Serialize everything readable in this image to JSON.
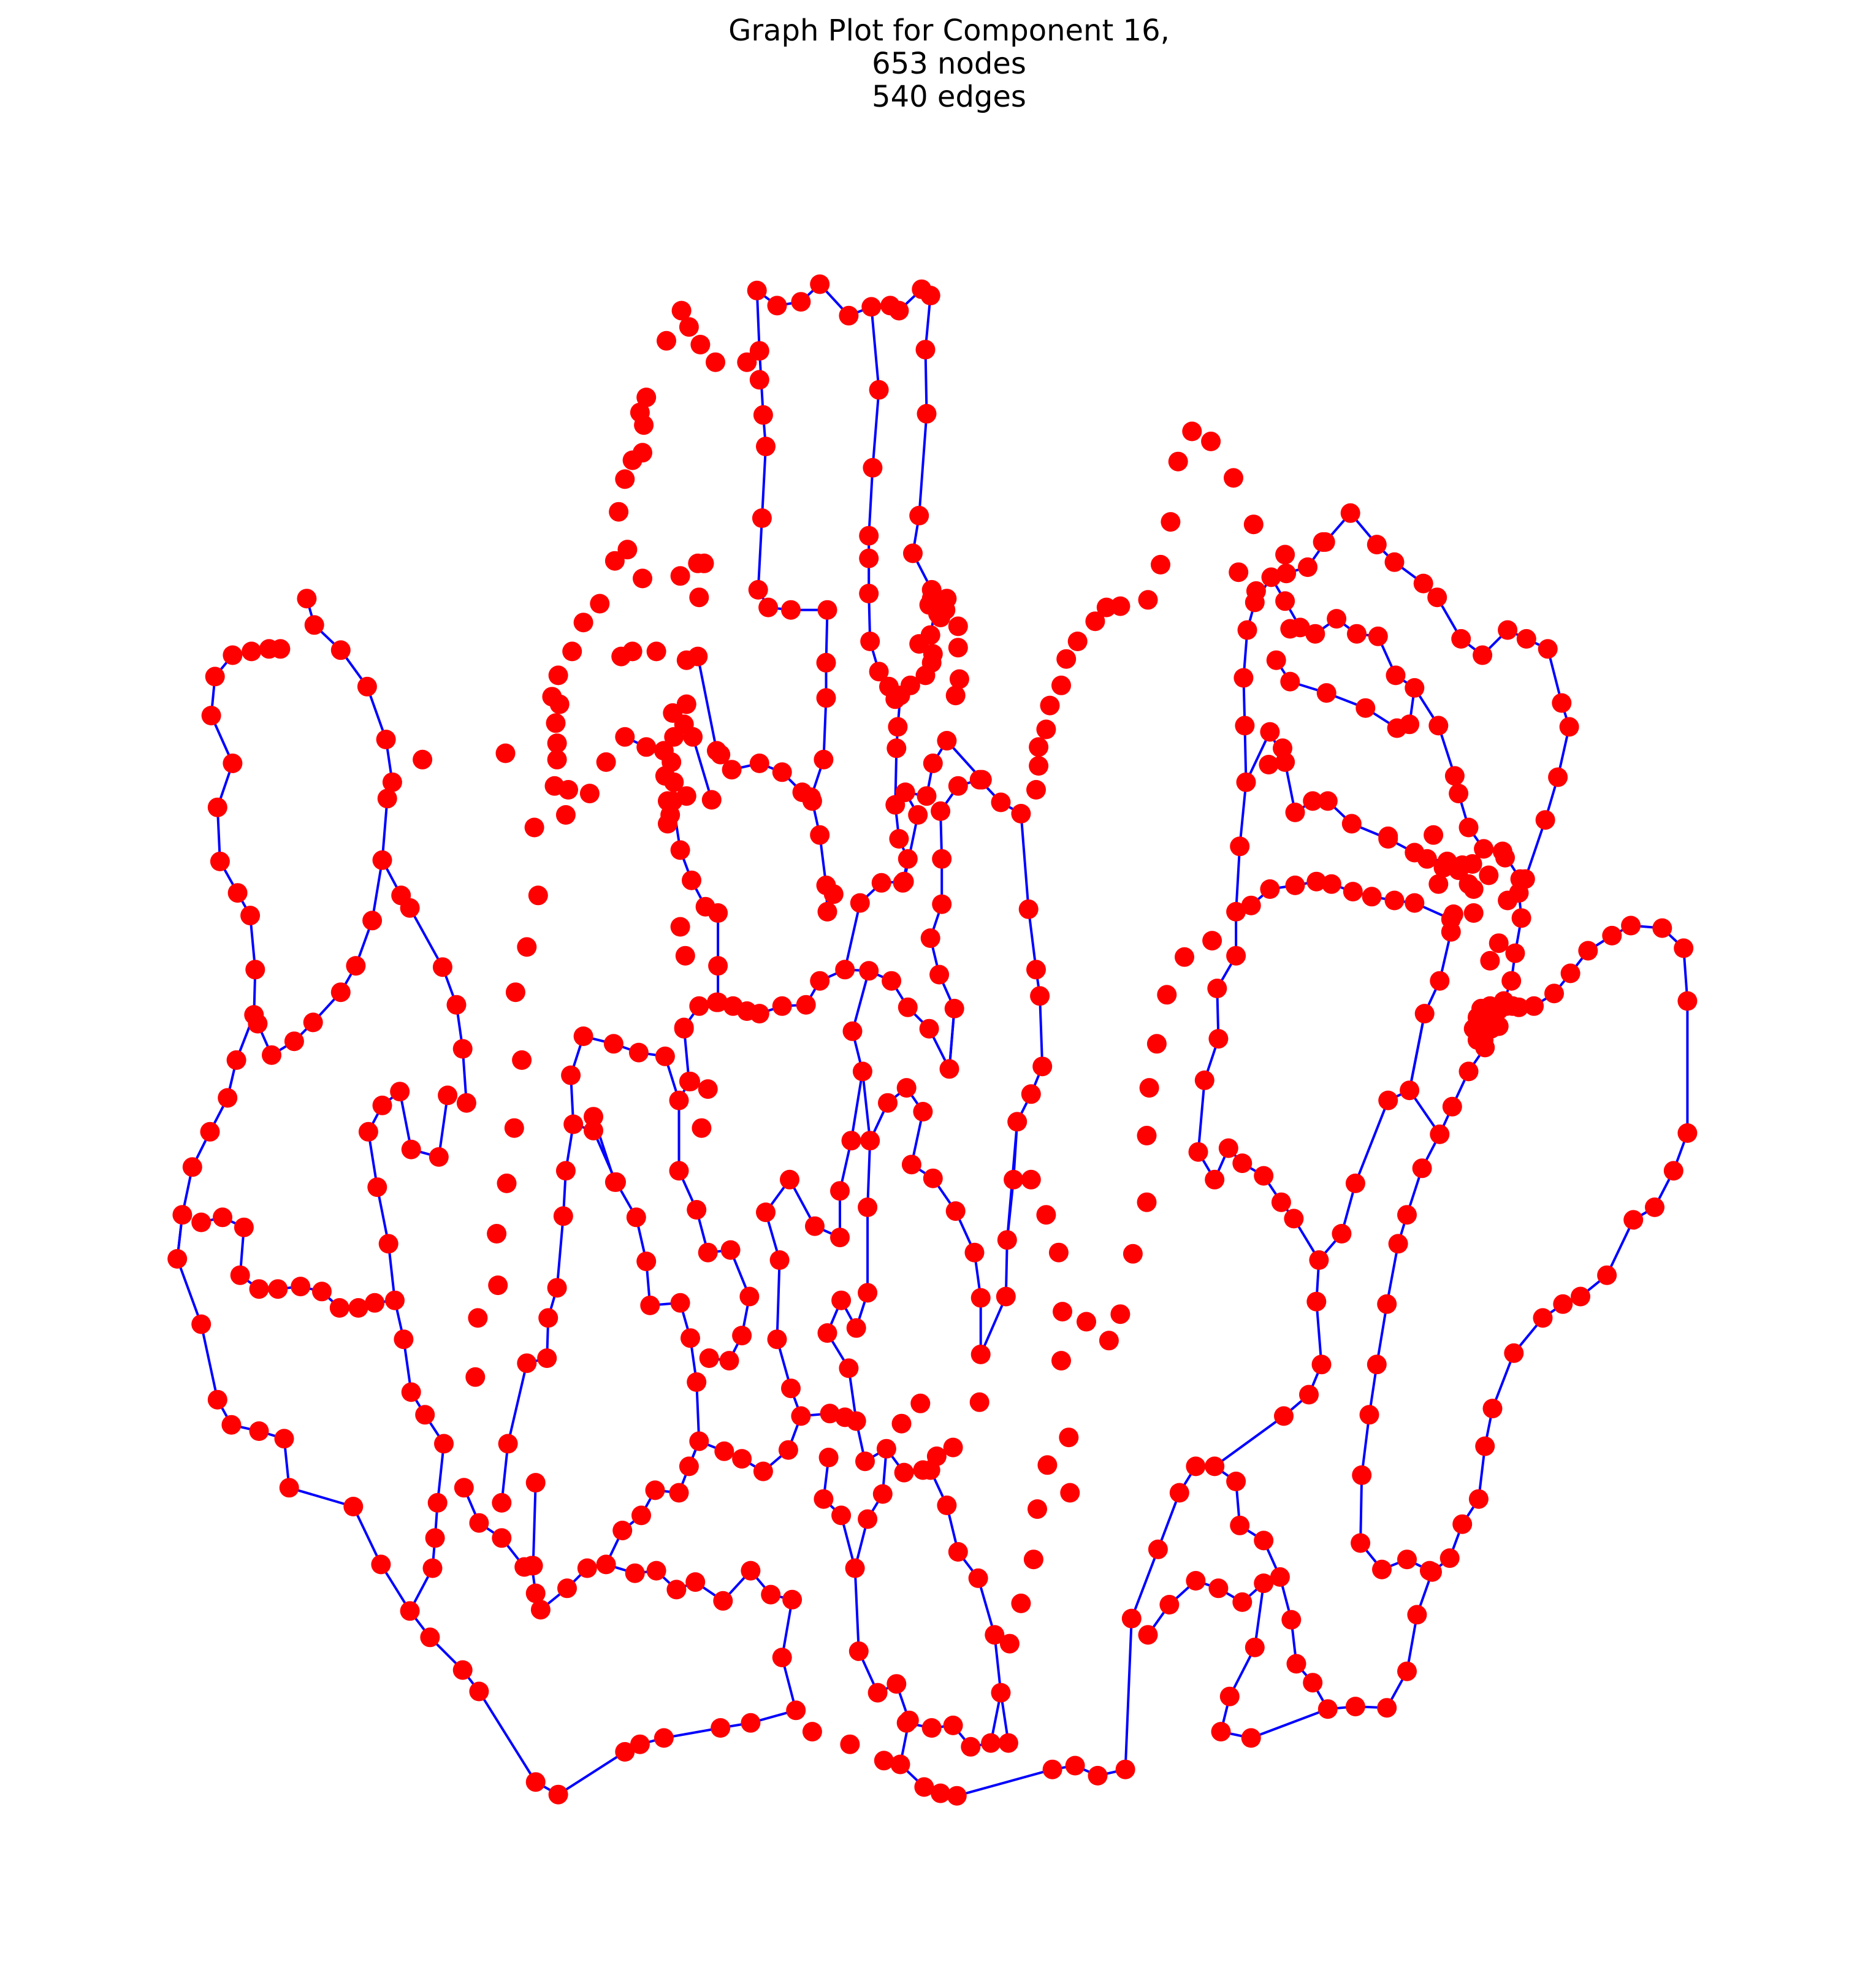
{
  "title": {
    "line1": "Graph Plot for Component 16,",
    "line2": "653 nodes",
    "line3": "540 edges"
  },
  "graph": {
    "node_count": 653,
    "edge_count": 540,
    "node_color": "#ff0000",
    "edge_color": "#0000ff",
    "background": "#ffffff"
  }
}
